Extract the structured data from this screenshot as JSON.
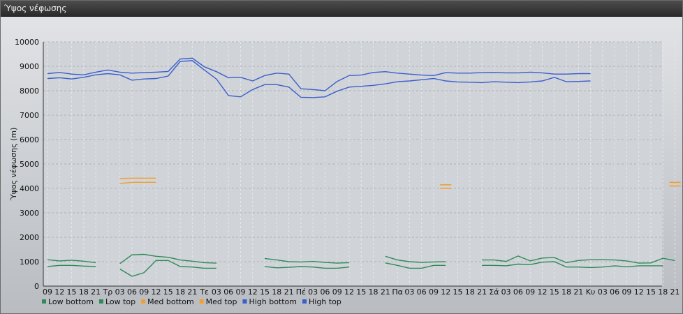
{
  "window": {
    "title": "Ύψος νέφωσης"
  },
  "chart_data": {
    "type": "line",
    "title": "",
    "ylabel": "Ύψος νέφωσης (m)",
    "ylim": [
      0,
      10000
    ],
    "yticks": [
      0,
      1000,
      2000,
      3000,
      4000,
      5000,
      6000,
      7000,
      8000,
      9000,
      10000
    ],
    "grid": true,
    "legend_position": "bottom-left",
    "categories": [
      "09",
      "12",
      "15",
      "18",
      "21",
      "Τρ",
      "03",
      "06",
      "09",
      "12",
      "15",
      "18",
      "21",
      "Τε",
      "03",
      "06",
      "09",
      "12",
      "15",
      "18",
      "21",
      "Πέ",
      "03",
      "06",
      "09",
      "12",
      "15",
      "18",
      "21",
      "Πα",
      "03",
      "06",
      "09",
      "12",
      "15",
      "18",
      "21",
      "Σά",
      "03",
      "06",
      "09",
      "12",
      "15",
      "18",
      "21",
      "Κυ",
      "03",
      "06",
      "09",
      "12",
      "15",
      "18",
      "21"
    ],
    "series": [
      {
        "name": "Low bottom",
        "color": "#2e8b57",
        "values": [
          800,
          850,
          850,
          820,
          800,
          null,
          700,
          400,
          550,
          1050,
          1050,
          800,
          780,
          730,
          730,
          null,
          null,
          null,
          800,
          750,
          770,
          800,
          780,
          730,
          730,
          780,
          null,
          null,
          950,
          850,
          730,
          730,
          850,
          850,
          null,
          null,
          850,
          850,
          830,
          900,
          880,
          980,
          1000,
          780,
          780,
          760,
          780,
          830,
          790,
          830,
          830,
          830,
          null
        ]
      },
      {
        "name": "Low top",
        "color": "#2e8b57",
        "values": [
          1080,
          1030,
          1060,
          1020,
          960,
          null,
          920,
          1280,
          1300,
          1220,
          1180,
          1070,
          1020,
          960,
          940,
          null,
          null,
          null,
          1130,
          1070,
          1000,
          990,
          1010,
          970,
          940,
          960,
          null,
          null,
          1220,
          1070,
          1000,
          970,
          990,
          1000,
          null,
          null,
          1070,
          1070,
          1010,
          1230,
          1030,
          1150,
          1170,
          960,
          1050,
          1080,
          1080,
          1070,
          1030,
          940,
          950,
          1140,
          1040
        ]
      },
      {
        "name": "Med bottom",
        "color": "#f0a030",
        "values": [
          null,
          null,
          null,
          null,
          null,
          null,
          4200,
          4250,
          4250,
          4250,
          null,
          null,
          null,
          null,
          null,
          null,
          null,
          null,
          null,
          null,
          null,
          null,
          null,
          null,
          null,
          null,
          null,
          null,
          null,
          null,
          null,
          null,
          null,
          4000,
          null,
          null,
          null,
          null,
          null,
          null,
          null,
          null,
          null,
          null,
          null,
          null,
          null,
          null,
          null,
          null,
          null,
          null,
          4100
        ]
      },
      {
        "name": "Med top",
        "color": "#f0a030",
        "values": [
          null,
          null,
          null,
          null,
          null,
          null,
          4400,
          4420,
          4420,
          4420,
          null,
          null,
          null,
          null,
          null,
          null,
          null,
          null,
          null,
          null,
          null,
          null,
          null,
          null,
          null,
          null,
          null,
          null,
          null,
          null,
          null,
          null,
          null,
          4150,
          null,
          null,
          null,
          null,
          null,
          null,
          null,
          null,
          null,
          null,
          null,
          null,
          null,
          null,
          null,
          null,
          null,
          null,
          4250
        ]
      },
      {
        "name": "High bottom",
        "color": "#3a5fcd",
        "values": [
          8500,
          8530,
          8480,
          8550,
          8650,
          8700,
          8650,
          8430,
          8480,
          8500,
          8600,
          9200,
          9230,
          8850,
          8480,
          7800,
          7750,
          8050,
          8250,
          8250,
          8150,
          7730,
          7720,
          7750,
          7980,
          8150,
          8180,
          8220,
          8280,
          8370,
          8400,
          8450,
          8500,
          8400,
          8360,
          8350,
          8330,
          8370,
          8350,
          8330,
          8360,
          8400,
          8550,
          8370,
          8380,
          8400,
          null,
          null,
          null,
          null,
          null,
          null,
          null
        ]
      },
      {
        "name": "High top",
        "color": "#3a5fcd",
        "values": [
          8700,
          8750,
          8680,
          8650,
          8760,
          8850,
          8760,
          8720,
          8740,
          8760,
          8790,
          9300,
          9330,
          8980,
          8780,
          8530,
          8550,
          8400,
          8620,
          8720,
          8680,
          8080,
          8050,
          8000,
          8380,
          8620,
          8640,
          8750,
          8780,
          8720,
          8680,
          8640,
          8620,
          8740,
          8720,
          8720,
          8740,
          8750,
          8730,
          8730,
          8760,
          8730,
          8680,
          8680,
          8700,
          8700,
          null,
          null,
          null,
          null,
          null,
          null,
          null
        ]
      }
    ]
  }
}
